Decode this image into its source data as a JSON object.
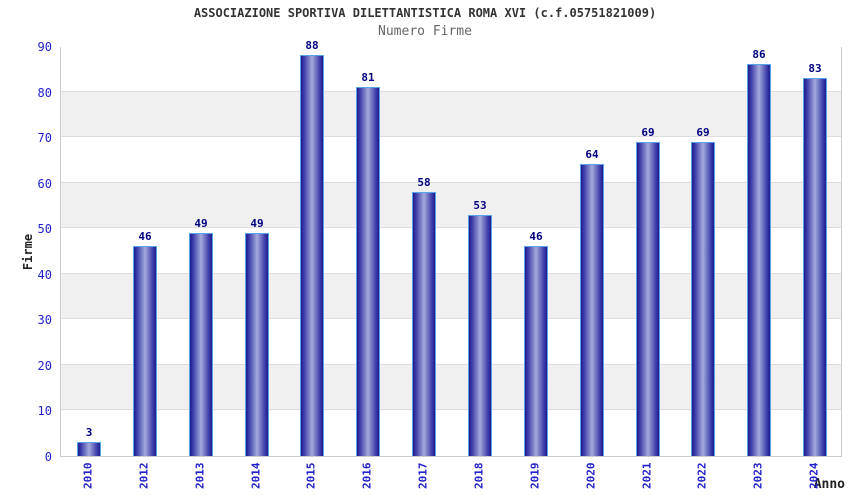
{
  "chart_data": {
    "type": "bar",
    "title": "ASSOCIAZIONE SPORTIVA DILETTANTISTICA ROMA XVI (c.f.05751821009)",
    "subtitle": "Numero Firme",
    "categories": [
      "2010",
      "2012",
      "2013",
      "2014",
      "2015",
      "2016",
      "2017",
      "2018",
      "2019",
      "2020",
      "2021",
      "2022",
      "2023",
      "2024"
    ],
    "values": [
      3,
      46,
      49,
      49,
      88,
      81,
      58,
      53,
      46,
      64,
      69,
      69,
      86,
      83
    ],
    "xlabel": "Anno",
    "ylabel": "Firme",
    "ylim": [
      0,
      90
    ],
    "yticks": [
      0,
      10,
      20,
      30,
      40,
      50,
      60,
      70,
      80,
      90
    ],
    "grid": true,
    "legend_position": "none",
    "bands_alternating": true,
    "colors": {
      "bar_edge": "#57a2e9",
      "bar_dark": "#1c1c8e",
      "bar_mid": "#3d3daa",
      "bar_light": "#a5abdc",
      "value_label": "#000080",
      "tick_label": "#2222cc",
      "band_gray": "#f0f0f0",
      "gridline": "#dddddd",
      "plot_border": "#cccccc",
      "title": "#333333",
      "subtitle": "#666666",
      "axis_label": "#222222"
    }
  }
}
